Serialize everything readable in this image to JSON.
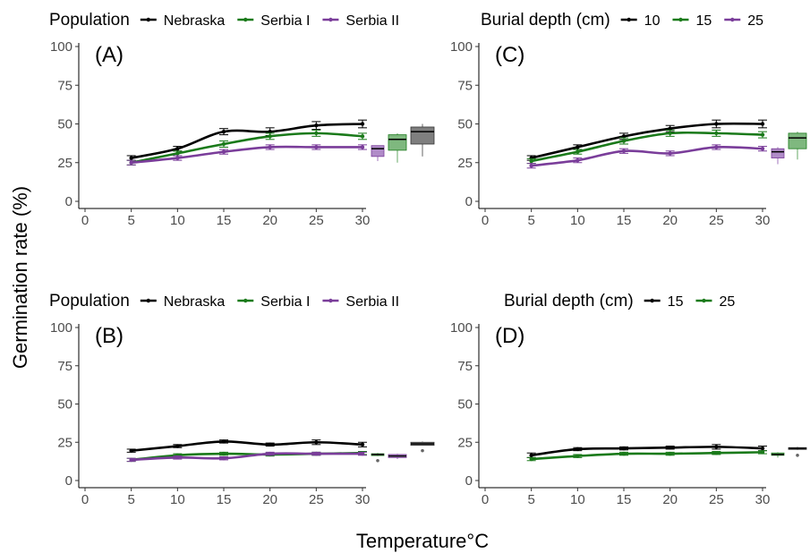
{
  "figure": {
    "ylabel": "Germination rate (%)",
    "xlabel": "Temperature°C"
  },
  "colors": {
    "black": "#000000",
    "green": "#1a7a1a",
    "purple": "#7a3d9a",
    "box_black": "#7f7f7f",
    "box_green": "#7fb87f",
    "box_purple": "#b08cc8"
  },
  "chart_data": [
    {
      "type": "line",
      "panel_label": "(A)",
      "legend_title": "Population",
      "legend_position": "top",
      "x": [
        5,
        10,
        15,
        20,
        25,
        30
      ],
      "xticks": [
        "0",
        "5",
        "10",
        "15",
        "20",
        "25",
        "30"
      ],
      "yticks": [
        "0",
        "25",
        "50",
        "75",
        "100"
      ],
      "xlim": [
        0,
        30
      ],
      "ylim": [
        0,
        100
      ],
      "series": [
        {
          "name": "Nebraska",
          "color": "black",
          "values": [
            28,
            34,
            45,
            45,
            49,
            50
          ],
          "err": [
            1.5,
            1.5,
            2,
            2.5,
            2.5,
            2.5
          ]
        },
        {
          "name": "Serbia I",
          "color": "green",
          "values": [
            25,
            31,
            37,
            42,
            44,
            42
          ],
          "err": [
            1.5,
            1.5,
            2,
            2,
            2,
            2
          ]
        },
        {
          "name": "Serbia II",
          "color": "purple",
          "values": [
            25,
            28,
            32,
            35,
            35,
            35
          ],
          "err": [
            1.5,
            1.5,
            1.5,
            1.5,
            1.5,
            1.5
          ]
        }
      ],
      "boxes": [
        {
          "color": "purple",
          "min": 26,
          "q1": 29,
          "median": 34,
          "q3": 36,
          "max": 36
        },
        {
          "color": "green",
          "min": 25,
          "q1": 33,
          "median": 40,
          "q3": 43,
          "max": 44
        },
        {
          "color": "black",
          "min": 29,
          "q1": 37,
          "median": 45,
          "q3": 48,
          "max": 50
        }
      ]
    },
    {
      "type": "line",
      "panel_label": "(B)",
      "legend_title": "Population",
      "legend_position": "top",
      "x": [
        5,
        10,
        15,
        20,
        25,
        30
      ],
      "xticks": [
        "0",
        "5",
        "10",
        "15",
        "20",
        "25",
        "30"
      ],
      "yticks": [
        "0",
        "25",
        "50",
        "75",
        "100"
      ],
      "xlim": [
        0,
        30
      ],
      "ylim": [
        0,
        100
      ],
      "series": [
        {
          "name": "Nebraska",
          "color": "black",
          "values": [
            19.5,
            22.5,
            25.5,
            23.5,
            25,
            23.5
          ],
          "err": [
            1,
            1,
            1,
            1,
            1.5,
            1.5
          ]
        },
        {
          "name": "Serbia I",
          "color": "green",
          "values": [
            13.5,
            16.5,
            17.5,
            17,
            17.5,
            18
          ],
          "err": [
            1,
            1,
            1,
            1,
            1,
            1
          ]
        },
        {
          "name": "Serbia II",
          "color": "purple",
          "values": [
            13.5,
            15,
            14.5,
            17.5,
            17.5,
            17.5
          ],
          "err": [
            1,
            1,
            1,
            1,
            1,
            1
          ]
        }
      ],
      "boxes": [
        {
          "color": "green",
          "min": 16,
          "q1": 16.5,
          "median": 17,
          "q3": 17.5,
          "max": 18,
          "outlier": 13
        },
        {
          "color": "purple",
          "min": 14,
          "q1": 15,
          "median": 16,
          "q3": 17,
          "max": 17.5
        },
        {
          "color": "black",
          "min": 23,
          "q1": 23,
          "median": 24,
          "q3": 25,
          "max": 25.5,
          "outlier": 19.5
        }
      ]
    },
    {
      "type": "line",
      "panel_label": "(C)",
      "legend_title": "Burial depth (cm)",
      "legend_position": "top",
      "x": [
        5,
        10,
        15,
        20,
        25,
        30
      ],
      "xticks": [
        "0",
        "5",
        "10",
        "15",
        "20",
        "25",
        "30"
      ],
      "yticks": [
        "0",
        "25",
        "50",
        "75",
        "100"
      ],
      "xlim": [
        0,
        30
      ],
      "ylim": [
        0,
        100
      ],
      "series": [
        {
          "name": "10",
          "color": "black",
          "values": [
            28,
            35,
            42,
            47,
            50,
            50
          ],
          "err": [
            1.5,
            1.5,
            2,
            2,
            2.5,
            2.5
          ]
        },
        {
          "name": "15",
          "color": "green",
          "values": [
            26,
            32,
            39,
            44,
            44,
            43
          ],
          "err": [
            1.5,
            1.5,
            2,
            2,
            2,
            2
          ]
        },
        {
          "name": "25",
          "color": "purple",
          "values": [
            23,
            26.5,
            32.5,
            31,
            35,
            34
          ],
          "err": [
            1.5,
            1.5,
            1.5,
            1.5,
            1.5,
            1.5
          ]
        }
      ],
      "boxes": [
        {
          "color": "purple",
          "min": 24,
          "q1": 28,
          "median": 32,
          "q3": 34,
          "max": 35
        },
        {
          "color": "green",
          "min": 27,
          "q1": 34,
          "median": 41,
          "q3": 44,
          "max": 45
        },
        {
          "color": "black",
          "min": 30,
          "q1": 38,
          "median": 44,
          "q3": 49,
          "max": 50
        }
      ]
    },
    {
      "type": "line",
      "panel_label": "(D)",
      "legend_title": "Burial depth (cm)",
      "legend_position": "top",
      "x": [
        5,
        10,
        15,
        20,
        25,
        30
      ],
      "xticks": [
        "0",
        "5",
        "10",
        "15",
        "20",
        "25",
        "30"
      ],
      "yticks": [
        "0",
        "25",
        "50",
        "75",
        "100"
      ],
      "xlim": [
        0,
        30
      ],
      "ylim": [
        0,
        100
      ],
      "series": [
        {
          "name": "15",
          "color": "black",
          "values": [
            16.5,
            20.5,
            21,
            21.5,
            22,
            21
          ],
          "err": [
            1.5,
            1,
            1,
            1,
            1.5,
            1.5
          ]
        },
        {
          "name": "25",
          "color": "green",
          "values": [
            14,
            16,
            17.5,
            17.5,
            18,
            18.5
          ],
          "err": [
            1,
            1,
            1,
            1,
            1,
            1
          ]
        }
      ],
      "boxes": [
        {
          "color": "green",
          "min": 15,
          "q1": 16.5,
          "median": 17,
          "q3": 18,
          "max": 18.5
        },
        {
          "color": "black",
          "min": 20,
          "q1": 20.5,
          "median": 21,
          "q3": 21.5,
          "max": 22,
          "outlier": 16.5
        }
      ]
    }
  ]
}
